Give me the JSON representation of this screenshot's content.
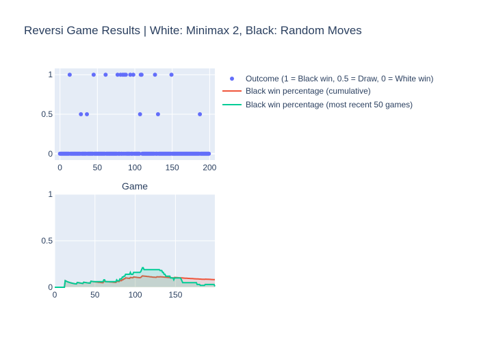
{
  "chart_data": {
    "title": "Reversi Game Results | White: Minimax 2, Black: Random Moves",
    "subplots": [
      {
        "type": "scatter",
        "x_ticks": [
          0,
          50,
          100,
          150,
          200
        ],
        "y_ticks": [
          0,
          0.5,
          1
        ],
        "xlim": [
          -7,
          207
        ],
        "ylim": [
          -0.08,
          1.08
        ],
        "points_nonzero": [
          {
            "x": 13,
            "y": 1
          },
          {
            "x": 28,
            "y": 0.5
          },
          {
            "x": 36,
            "y": 0.5
          },
          {
            "x": 45,
            "y": 1
          },
          {
            "x": 61,
            "y": 1
          },
          {
            "x": 77,
            "y": 1
          },
          {
            "x": 81,
            "y": 1
          },
          {
            "x": 84,
            "y": 1
          },
          {
            "x": 86,
            "y": 1
          },
          {
            "x": 88,
            "y": 1
          },
          {
            "x": 94,
            "y": 1
          },
          {
            "x": 98,
            "y": 1
          },
          {
            "x": 107,
            "y": 0.5
          },
          {
            "x": 108,
            "y": 1
          },
          {
            "x": 109,
            "y": 1
          },
          {
            "x": 127,
            "y": 1
          },
          {
            "x": 131,
            "y": 0.5
          },
          {
            "x": 149,
            "y": 1
          },
          {
            "x": 187,
            "y": 0.5
          }
        ],
        "total_games": 200
      },
      {
        "type": "line",
        "xlabel": "Game",
        "x_ticks": [
          0,
          50,
          100,
          150
        ],
        "y_ticks": [
          0,
          0.5,
          1
        ],
        "xlim": [
          0,
          199
        ],
        "ylim": [
          0,
          1
        ],
        "area_fill": true
      }
    ],
    "legend": [
      {
        "name": "Outcome (1 = Black win, 0.5 = Draw, 0 = White win)",
        "kind": "marker",
        "color": "#636efa"
      },
      {
        "name": "Black win percentage (cumulative)",
        "kind": "line",
        "color": "#ef553b"
      },
      {
        "name": "Black win percentage (most recent 50 games)",
        "kind": "line",
        "color": "#00cc96"
      }
    ],
    "colors": {
      "plot_bg": "#e5ecf6",
      "grid": "#ffffff",
      "text": "#2a3f5f"
    }
  }
}
